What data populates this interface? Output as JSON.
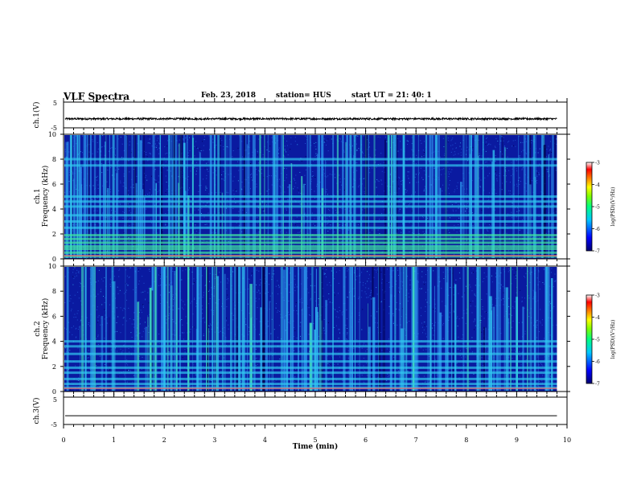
{
  "header": {
    "title": "VLF Spectra",
    "date": "Feb. 23, 2018",
    "station": "station= HUS",
    "start": "start  UT  =   21: 40: 1"
  },
  "colors": {
    "spectrogram_background": "#0a1aa0",
    "colormap": [
      "#000080",
      "#0000ff",
      "#00c8ff",
      "#00ff80",
      "#80ff00",
      "#ffff00",
      "#ff8000",
      "#ff0000",
      "#ffffff"
    ]
  },
  "chart_data": [
    {
      "type": "line",
      "name": "ch1-waveform",
      "ylabel": "ch.1(V)",
      "ylim": [
        -5,
        5
      ],
      "yticks": [
        "5",
        "-5"
      ],
      "baseline": -1.5,
      "noise_amplitude": 0.35,
      "color": "#000000"
    },
    {
      "type": "heatmap",
      "name": "ch1-spectrogram",
      "ylabel_top": "ch.1",
      "ylabel": "Frequency (kHz)",
      "ylim": [
        0,
        10
      ],
      "yticks": [
        "0",
        "2",
        "4",
        "6",
        "8",
        "10"
      ],
      "horizontal_bands_khz": [
        0.2,
        0.5,
        0.8,
        1.0,
        1.3,
        1.6,
        1.9,
        2.5,
        3.0,
        3.5,
        4.2,
        4.6,
        5.0,
        7.5,
        8.0
      ],
      "colorbar": {
        "label": "log(PSD)(V²/Hz)",
        "range": [
          -7,
          -3
        ],
        "ticks": [
          "-3",
          "-4",
          "-5",
          "-6",
          "-7"
        ]
      }
    },
    {
      "type": "heatmap",
      "name": "ch2-spectrogram",
      "ylabel_top": "ch.2",
      "ylabel": "Frequency (kHz)",
      "ylim": [
        0,
        10
      ],
      "yticks": [
        "0",
        "2",
        "4",
        "6",
        "8",
        "10"
      ],
      "horizontal_bands_khz": [
        0.3,
        0.6,
        1.0,
        1.5,
        1.9,
        2.4,
        3.0,
        3.6,
        4.0
      ],
      "colorbar": {
        "label": "log(PSD)(V²/Hz)",
        "range": [
          -7,
          -3
        ],
        "ticks": [
          "-3",
          "-4",
          "-5",
          "-6",
          "-7"
        ]
      }
    },
    {
      "type": "line",
      "name": "ch3-waveform",
      "ylabel": "ch.3(V)",
      "ylim": [
        -5,
        5
      ],
      "yticks": [
        "5",
        "-5"
      ],
      "baseline": -1.8,
      "noise_amplitude": 0.0,
      "color": "#000000"
    }
  ],
  "x_axis": {
    "label": "Time (min)",
    "xlim": [
      0,
      10
    ],
    "data_end": 9.8,
    "ticks": [
      "0",
      "1",
      "2",
      "3",
      "4",
      "5",
      "6",
      "7",
      "8",
      "9",
      "10"
    ]
  }
}
